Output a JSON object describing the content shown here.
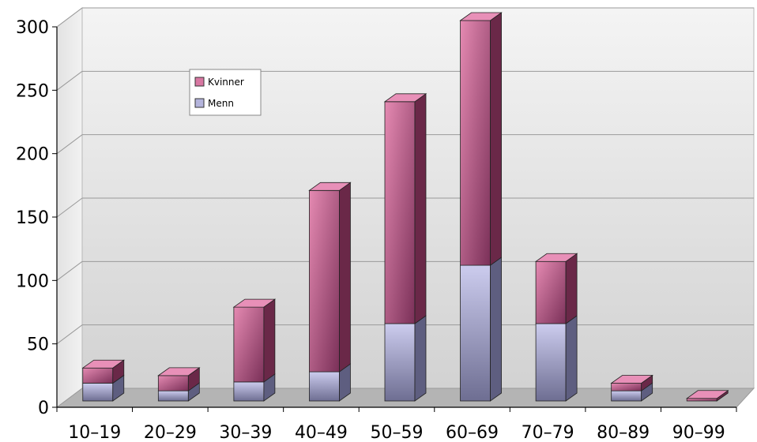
{
  "chart_data": {
    "type": "bar",
    "stacked": true,
    "three_d": true,
    "categories": [
      "10–19",
      "20–29",
      "30–39",
      "40–49",
      "50–59",
      "60–69",
      "70–79",
      "80–89",
      "90–99"
    ],
    "series": [
      {
        "name": "Menn",
        "values": [
          14,
          8,
          15,
          23,
          61,
          107,
          61,
          8,
          0
        ],
        "color": "#9a9ac8"
      },
      {
        "name": "Kvinner",
        "values": [
          12,
          12,
          59,
          143,
          175,
          193,
          49,
          6,
          2
        ],
        "color": "#c8608c"
      }
    ],
    "legend_order": [
      "Kvinner",
      "Menn"
    ],
    "title": "",
    "xlabel": "",
    "ylabel": "",
    "ylim": [
      0,
      300
    ],
    "yticks": [
      0,
      50,
      100,
      150,
      200,
      250,
      300
    ],
    "grid": true,
    "legend_position": "top-left"
  }
}
